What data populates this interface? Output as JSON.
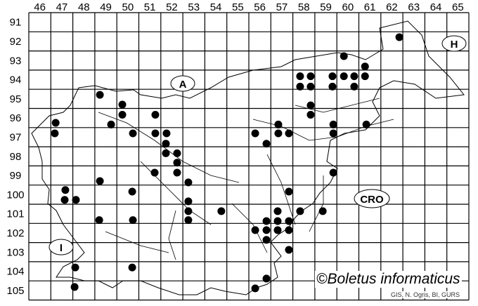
{
  "map": {
    "columns": [
      "46",
      "47",
      "48",
      "49",
      "50",
      "51",
      "52",
      "53",
      "54",
      "55",
      "56",
      "57",
      "58",
      "59",
      "60",
      "61",
      "62",
      "63",
      "64",
      "65"
    ],
    "rows": [
      "91",
      "92",
      "93",
      "94",
      "95",
      "96",
      "97",
      "98",
      "99",
      "100",
      "101",
      "102",
      "103",
      "104",
      "105"
    ],
    "country_labels": {
      "austria": "A",
      "hungary": "H",
      "croatia": "CRO",
      "italy": "I"
    },
    "copyright": "©Boletus informaticus",
    "credit": "GIS, N. Ogris, BI, GURS",
    "dot_color": "#000000",
    "records": [
      [
        62.34,
        91.78
      ],
      [
        59.82,
        92.77
      ],
      [
        60.78,
        93.31
      ],
      [
        57.83,
        93.82
      ],
      [
        58.31,
        93.82
      ],
      [
        59.3,
        93.82
      ],
      [
        59.82,
        93.82
      ],
      [
        60.29,
        93.82
      ],
      [
        60.78,
        93.82
      ],
      [
        57.83,
        94.36
      ],
      [
        58.31,
        94.36
      ],
      [
        59.3,
        94.36
      ],
      [
        60.29,
        94.36
      ],
      [
        48.73,
        94.79
      ],
      [
        49.75,
        95.3
      ],
      [
        49.75,
        95.83
      ],
      [
        51.25,
        95.83
      ],
      [
        58.31,
        95.34
      ],
      [
        58.31,
        95.83
      ],
      [
        46.72,
        96.25
      ],
      [
        49.24,
        96.34
      ],
      [
        56.84,
        96.34
      ],
      [
        59.34,
        96.34
      ],
      [
        60.84,
        96.34
      ],
      [
        46.68,
        96.8
      ],
      [
        50.23,
        96.8
      ],
      [
        51.25,
        96.8
      ],
      [
        51.76,
        96.8
      ],
      [
        55.79,
        96.8
      ],
      [
        56.84,
        96.8
      ],
      [
        57.32,
        96.8
      ],
      [
        59.34,
        96.8
      ],
      [
        51.73,
        97.34
      ],
      [
        56.3,
        97.34
      ],
      [
        51.73,
        97.84
      ],
      [
        52.24,
        97.84
      ],
      [
        52.24,
        98.33
      ],
      [
        51.22,
        98.85
      ],
      [
        52.24,
        98.85
      ],
      [
        59.34,
        98.85
      ],
      [
        48.73,
        99.29
      ],
      [
        52.75,
        99.36
      ],
      [
        47.16,
        99.76
      ],
      [
        50.2,
        99.84
      ],
      [
        57.32,
        99.84
      ],
      [
        47.13,
        100.27
      ],
      [
        47.64,
        100.27
      ],
      [
        52.75,
        100.35
      ],
      [
        52.75,
        100.86
      ],
      [
        54.25,
        100.86
      ],
      [
        56.81,
        100.86
      ],
      [
        57.83,
        100.86
      ],
      [
        58.86,
        100.86
      ],
      [
        48.7,
        101.33
      ],
      [
        50.23,
        101.33
      ],
      [
        52.75,
        101.33
      ],
      [
        56.3,
        101.38
      ],
      [
        56.81,
        101.38
      ],
      [
        57.32,
        101.38
      ],
      [
        55.79,
        101.85
      ],
      [
        56.3,
        101.85
      ],
      [
        56.81,
        101.85
      ],
      [
        57.32,
        101.85
      ],
      [
        56.3,
        102.36
      ],
      [
        57.32,
        102.88
      ],
      [
        47.61,
        103.8
      ],
      [
        50.2,
        103.8
      ],
      [
        56.3,
        104.38
      ],
      [
        55.79,
        104.89
      ],
      [
        47.58,
        104.82
      ]
    ]
  }
}
